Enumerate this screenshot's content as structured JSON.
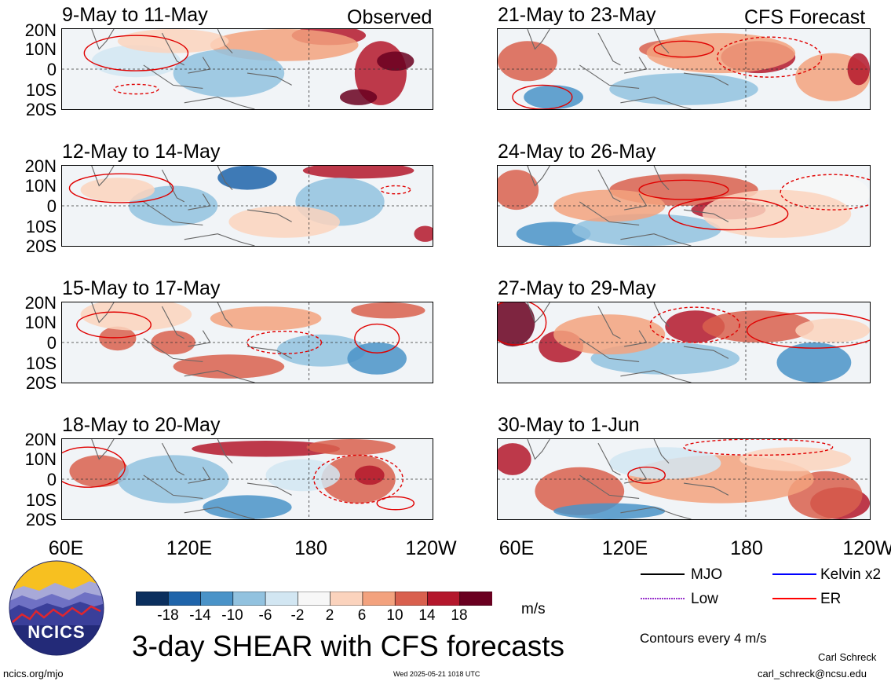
{
  "columns": {
    "observed_label": "Observed",
    "forecast_label": "CFS Forecast"
  },
  "lat_labels": [
    "20N",
    "10N",
    "0",
    "10S",
    "20S"
  ],
  "lon_labels": [
    "60E",
    "120E",
    "180",
    "120W"
  ],
  "panels": [
    {
      "title": "9-May to 11-May"
    },
    {
      "title": "12-May to 14-May"
    },
    {
      "title": "15-May to 17-May"
    },
    {
      "title": "18-May to 20-May"
    },
    {
      "title": "21-May to 23-May"
    },
    {
      "title": "24-May to 26-May"
    },
    {
      "title": "27-May to 29-May"
    },
    {
      "title": "30-May to 1-Jun"
    }
  ],
  "colorbar": {
    "labels": [
      "-18",
      "-14",
      "-10",
      "-6",
      "-2",
      "2",
      "6",
      "10",
      "14",
      "18"
    ],
    "colors": [
      "#0b2f5e",
      "#1f64aa",
      "#4a93c8",
      "#92c2df",
      "#d2e6f2",
      "#f7f7f7",
      "#fbd3bd",
      "#f3a27e",
      "#d9604e",
      "#b4172c",
      "#6a0020"
    ],
    "units": "m/s"
  },
  "legend": {
    "items": [
      {
        "label": "MJO",
        "color": "#000000",
        "style": "solid"
      },
      {
        "label": "Kelvin x2",
        "color": "#0000ff",
        "style": "solid"
      },
      {
        "label": "Low",
        "color": "#9933cc",
        "style": "dotted"
      },
      {
        "label": "ER",
        "color": "#ff0000",
        "style": "solid"
      }
    ],
    "contours_note": "Contours every 4 m/s"
  },
  "main_title": "3-day SHEAR with CFS forecasts",
  "logo_text": "NCICS",
  "footer": {
    "url": "ncics.org/mjo",
    "timestamp": "Wed 2025-05-21 1018 UTC",
    "author": "Carl Schreck",
    "email": "carl_schreck@ncsu.edu"
  }
}
